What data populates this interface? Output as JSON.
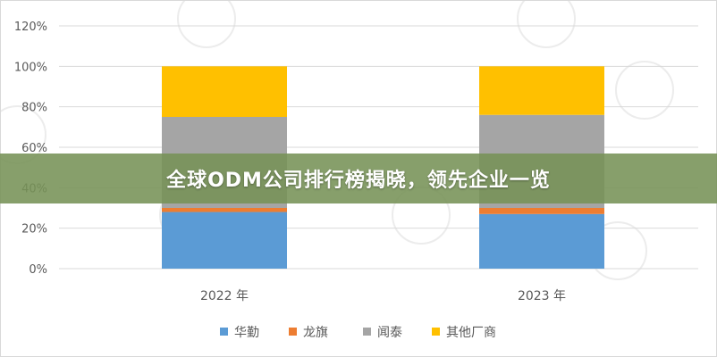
{
  "banner": {
    "title": "全球ODM公司排行榜揭晓，领先企业一览"
  },
  "chart_data": {
    "type": "bar",
    "stacked": true,
    "categories": [
      "2022 年",
      "2023 年"
    ],
    "series": [
      {
        "name": "华勤",
        "color": "#5b9bd5",
        "values": [
          28,
          27
        ]
      },
      {
        "name": "龙旗",
        "color": "#ed7d31",
        "values": [
          2,
          3
        ]
      },
      {
        "name": "闻泰",
        "color": "#a5a5a5",
        "values": [
          45,
          46
        ]
      },
      {
        "name": "其他厂商",
        "color": "#ffc000",
        "values": [
          25,
          24
        ]
      }
    ],
    "y_ticks": [
      "0%",
      "20%",
      "40%",
      "60%",
      "80%",
      "100%",
      "120%"
    ],
    "ylim": [
      0,
      120
    ],
    "grid": true,
    "legend_position": "bottom"
  }
}
